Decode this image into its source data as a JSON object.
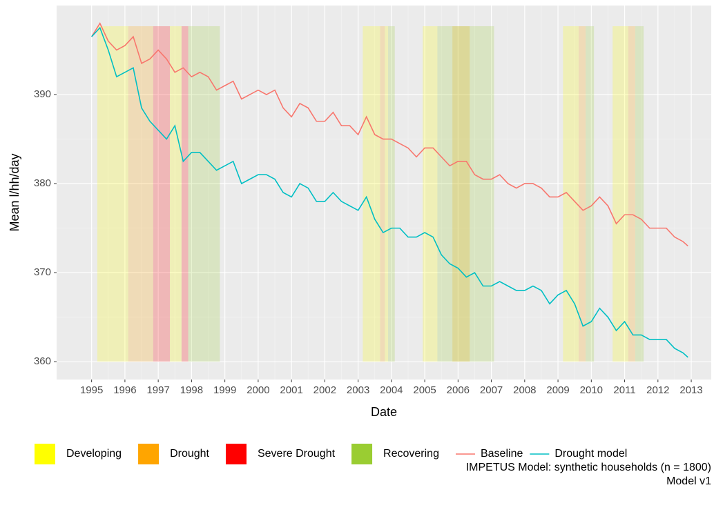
{
  "chart_data": {
    "type": "line",
    "x_label": "Date",
    "y_label": "Mean l/hh/day",
    "caption": [
      "IMPETUS Model: synthetic households (n = 1800)",
      "Model v1"
    ],
    "xlim": [
      1993.95,
      2013.6
    ],
    "ylim": [
      358,
      400
    ],
    "xticks": [
      1995,
      1996,
      1997,
      1998,
      1999,
      2000,
      2001,
      2002,
      2003,
      2004,
      2005,
      2006,
      2007,
      2008,
      2009,
      2010,
      2011,
      2012,
      2013
    ],
    "yticks": [
      360,
      370,
      380,
      390
    ],
    "grid": true,
    "legend": "bottom",
    "phases": [
      {
        "name": "Developing",
        "color": "#ffff00",
        "periods": [
          [
            1995.17,
            1996.1
          ],
          [
            1997.35,
            1997.7
          ],
          [
            2003.14,
            2003.66
          ],
          [
            2003.8,
            2003.9
          ],
          [
            2004.94,
            2005.38
          ],
          [
            2009.15,
            2009.62
          ],
          [
            2010.64,
            2011.11
          ]
        ]
      },
      {
        "name": "Drought",
        "color": "#ffa500",
        "periods": [
          [
            1996.1,
            1996.85
          ],
          [
            2003.66,
            2003.8
          ],
          [
            2005.83,
            2006.35
          ],
          [
            2009.62,
            2009.83
          ],
          [
            2011.11,
            2011.32
          ]
        ]
      },
      {
        "name": "Severe Drought",
        "color": "#ff0000",
        "periods": [
          [
            1996.85,
            1997.35
          ],
          [
            1997.7,
            1997.9
          ]
        ]
      },
      {
        "name": "Recovering",
        "color": "#9acd32",
        "periods": [
          [
            1997.9,
            1998.85
          ],
          [
            2003.9,
            2004.1
          ],
          [
            2005.38,
            2007.08
          ],
          [
            2009.83,
            2010.08
          ],
          [
            2011.32,
            2011.57
          ]
        ]
      }
    ],
    "x": [
      1995.0,
      1995.25,
      1995.5,
      1995.75,
      1996.0,
      1996.25,
      1996.5,
      1996.75,
      1997.0,
      1997.25,
      1997.5,
      1997.75,
      1998.0,
      1998.25,
      1998.5,
      1998.75,
      1999.0,
      1999.25,
      1999.5,
      1999.75,
      2000.0,
      2000.25,
      2000.5,
      2000.75,
      2001.0,
      2001.25,
      2001.5,
      2001.75,
      2002.0,
      2002.25,
      2002.5,
      2002.75,
      2003.0,
      2003.25,
      2003.5,
      2003.75,
      2004.0,
      2004.25,
      2004.5,
      2004.75,
      2005.0,
      2005.25,
      2005.5,
      2005.75,
      2006.0,
      2006.25,
      2006.5,
      2006.75,
      2007.0,
      2007.25,
      2007.5,
      2007.75,
      2008.0,
      2008.25,
      2008.5,
      2008.75,
      2009.0,
      2009.25,
      2009.5,
      2009.75,
      2010.0,
      2010.25,
      2010.5,
      2010.75,
      2011.0,
      2011.25,
      2011.5,
      2011.75,
      2012.0,
      2012.25,
      2012.5,
      2012.75,
      2012.9
    ],
    "series": [
      {
        "name": "Baseline",
        "color": "#f8766d",
        "values": [
          396.5,
          398,
          396,
          395,
          395.5,
          396.5,
          393.5,
          394,
          395,
          394,
          392.5,
          393,
          392,
          392.5,
          392,
          390.5,
          391,
          391.5,
          389.5,
          390,
          390.5,
          390,
          390.5,
          388.5,
          387.5,
          389,
          388.5,
          387,
          387,
          388,
          386.5,
          386.5,
          385.5,
          387.5,
          385.5,
          385,
          385,
          384.5,
          384,
          383,
          384,
          384,
          383,
          382,
          382.5,
          382.5,
          381,
          380.5,
          380.5,
          381,
          380,
          379.5,
          380,
          380,
          379.5,
          378.5,
          378.5,
          379,
          378,
          377,
          377.5,
          378.5,
          377.5,
          375.5,
          376.5,
          376.5,
          376,
          375,
          375,
          375,
          374,
          373.5,
          373
        ]
      },
      {
        "name": "Drought model",
        "color": "#00bfc4",
        "values": [
          396.5,
          397.5,
          395,
          392,
          392.5,
          393,
          388.5,
          387,
          386,
          385,
          386.5,
          382.5,
          383.5,
          383.5,
          382.5,
          381.5,
          382,
          382.5,
          380,
          380.5,
          381,
          381,
          380.5,
          379,
          378.5,
          380,
          379.5,
          378,
          378,
          379,
          378,
          377.5,
          377,
          378.5,
          376,
          374.5,
          375,
          375,
          374,
          374,
          374.5,
          374,
          372,
          371,
          370.5,
          369.5,
          370,
          368.5,
          368.5,
          369,
          368.5,
          368,
          368,
          368.5,
          368,
          366.5,
          367.5,
          368,
          366.5,
          364,
          364.5,
          366,
          365,
          363.5,
          364.5,
          363,
          363,
          362.5,
          362.5,
          362.5,
          361.5,
          361,
          360.5
        ]
      }
    ]
  }
}
